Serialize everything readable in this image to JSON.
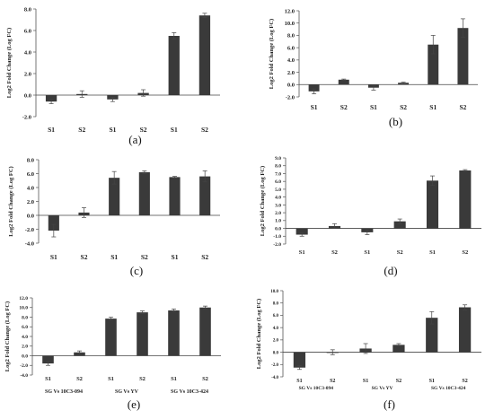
{
  "chart_data": [
    {
      "type": "bar",
      "panel_label": "(a)",
      "categories": [
        "S1",
        "S2",
        "S1",
        "S2",
        "S1",
        "S2"
      ],
      "values": [
        -0.6,
        0.1,
        -0.4,
        0.2,
        5.5,
        7.4
      ],
      "errors": [
        0.2,
        0.3,
        0.2,
        0.3,
        0.3,
        0.2
      ],
      "ylabel": "Log2 Fold Change (Log FC)",
      "ylim": [
        -2.0,
        8.0
      ],
      "yticks": [
        "-2.0",
        "0.0",
        "2.0",
        "4.0",
        "6.0",
        "8.0"
      ],
      "group_labels": [],
      "bar_color": "#3a3a3a"
    },
    {
      "type": "bar",
      "panel_label": "(b)",
      "categories": [
        "S1",
        "S2",
        "S1",
        "S2",
        "S1",
        "S2"
      ],
      "values": [
        -1.1,
        0.8,
        -0.5,
        0.3,
        6.5,
        9.2
      ],
      "errors": [
        0.4,
        0.1,
        0.4,
        0.1,
        1.5,
        1.5
      ],
      "ylabel": "Log2 Fold Change (Log FC)",
      "ylim": [
        -2.0,
        12.0
      ],
      "yticks": [
        "-2.0",
        "0.0",
        "2.0",
        "4.0",
        "6.0",
        "8.0",
        "10.0",
        "12.0"
      ],
      "group_labels": [],
      "bar_color": "#3a3a3a"
    },
    {
      "type": "bar",
      "panel_label": "(c)",
      "categories": [
        "S1",
        "S2",
        "S1",
        "S2",
        "S1",
        "S2"
      ],
      "values": [
        -2.2,
        0.4,
        5.4,
        6.2,
        5.5,
        5.6
      ],
      "errors": [
        0.9,
        0.7,
        0.9,
        0.2,
        0.1,
        0.8
      ],
      "ylabel": "Log2 Fold Change (Log FC)",
      "ylim": [
        -4.0,
        8.0
      ],
      "yticks": [
        "-4.0",
        "-2.0",
        "0.0",
        "2.0",
        "4.0",
        "6.0",
        "8.0"
      ],
      "group_labels": [],
      "bar_color": "#3a3a3a"
    },
    {
      "type": "bar",
      "panel_label": "(d)",
      "categories": [
        "S1",
        "S2",
        "S1",
        "S2",
        "S1",
        "S2"
      ],
      "values": [
        -0.8,
        0.3,
        -0.5,
        0.9,
        6.1,
        7.4
      ],
      "errors": [
        0.2,
        0.3,
        0.3,
        0.3,
        0.6,
        0.1
      ],
      "ylabel": "Log2 Fold Change (Log FC)",
      "ylim": [
        -2.0,
        9.0
      ],
      "yticks": [
        "-2.0",
        "-1.0",
        "0.0",
        "1.0",
        "2.0",
        "3.0",
        "4.0",
        "5.0",
        "6.0",
        "7.0",
        "8.0",
        "9.0"
      ],
      "group_labels": [],
      "bar_color": "#3a3a3a"
    },
    {
      "type": "bar",
      "panel_label": "(e)",
      "categories": [
        "S1",
        "S2",
        "S1",
        "S2",
        "S1",
        "S2"
      ],
      "values": [
        -1.6,
        0.7,
        7.7,
        9.0,
        9.4,
        10.0
      ],
      "errors": [
        0.4,
        0.3,
        0.3,
        0.3,
        0.3,
        0.3
      ],
      "ylabel": "Log2 Fold Change (Log FC)",
      "ylim": [
        -4.0,
        12.0
      ],
      "yticks": [
        "-4.0",
        "-2.0",
        "0.0",
        "2.0",
        "4.0",
        "6.0",
        "8.0",
        "10.0",
        "12.0"
      ],
      "group_labels": [
        "SG Vs 10C3-094",
        "SG Vs YV",
        "SG Vs 10C3-424"
      ],
      "bar_color": "#3a3a3a"
    },
    {
      "type": "bar",
      "panel_label": "(f)",
      "categories": [
        "S1",
        "S2",
        "S1",
        "S2",
        "S1",
        "S2"
      ],
      "values": [
        -2.5,
        0.0,
        0.6,
        1.2,
        5.6,
        7.3
      ],
      "errors": [
        0.3,
        0.4,
        0.8,
        0.2,
        1.0,
        0.4
      ],
      "ylabel": "Log2 Fold Change (Log FC)",
      "ylim": [
        -4.0,
        10.0
      ],
      "yticks": [
        "-4.0",
        "-2.0",
        "0.0",
        "2.0",
        "4.0",
        "6.0",
        "8.0",
        "10.0"
      ],
      "group_labels": [
        "SG Vs 10C3-094",
        "SG Vs YV",
        "SG Vs 10C3-424"
      ],
      "bar_color": "#3a3a3a"
    }
  ]
}
